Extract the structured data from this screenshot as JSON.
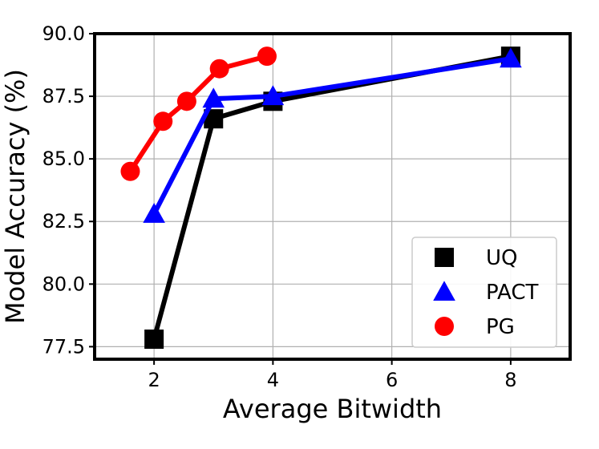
{
  "chart_data": {
    "type": "line",
    "title": "",
    "xlabel": "Average Bitwidth",
    "ylabel": "Model Accuracy (%)",
    "xlim": [
      1.0,
      9.0
    ],
    "ylim": [
      77.0,
      90.0
    ],
    "x_ticks": [
      2,
      4,
      6,
      8
    ],
    "x_tick_labels": [
      "2",
      "4",
      "6",
      "8"
    ],
    "y_ticks": [
      77.5,
      80.0,
      82.5,
      85.0,
      87.5,
      90.0
    ],
    "y_tick_labels": [
      "77.5",
      "80.0",
      "82.5",
      "85.0",
      "87.5",
      "90.0"
    ],
    "grid": true,
    "legend_position": "bottom-right",
    "series": [
      {
        "name": "UQ",
        "color": "#000000",
        "marker": "square",
        "x": [
          2,
          3,
          4,
          8
        ],
        "y": [
          77.8,
          86.6,
          87.3,
          89.1
        ]
      },
      {
        "name": "PACT",
        "color": "#0000ff",
        "marker": "triangle",
        "x": [
          2,
          3,
          4,
          8
        ],
        "y": [
          82.8,
          87.4,
          87.5,
          89.0
        ]
      },
      {
        "name": "PG",
        "color": "#ff0000",
        "marker": "circle",
        "x": [
          1.6,
          2.15,
          2.55,
          3.1,
          3.9
        ],
        "y": [
          84.5,
          86.5,
          87.3,
          88.6,
          89.1
        ]
      }
    ]
  }
}
